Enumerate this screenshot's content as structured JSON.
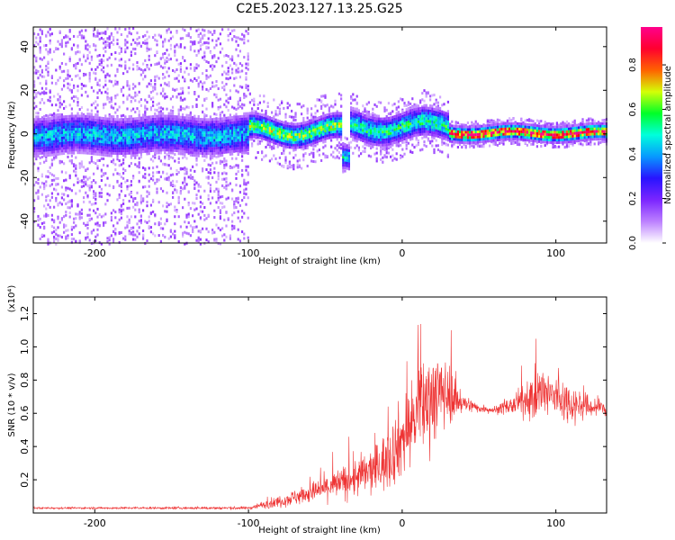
{
  "title": "C2E5.2023.127.13.25.G25",
  "colors": {
    "snr_line": "#ee3333",
    "background": "#ffffff",
    "axis": "#000000"
  },
  "chart_data": [
    {
      "type": "heatmap",
      "xlabel": "Height of straight line (km)",
      "ylabel": "Frequency (Hz)",
      "xlim": [
        -240,
        133
      ],
      "ylim": [
        -50,
        49
      ],
      "x_ticks": [
        -200,
        -100,
        0,
        100
      ],
      "y_ticks": [
        -40,
        -20,
        0,
        20,
        40
      ],
      "colorbar": {
        "label": "Normalized spectral amplitude",
        "range": [
          0.0,
          0.97
        ],
        "ticks": [
          "0.0",
          "0.2",
          "0.4",
          "0.6",
          "0.8"
        ],
        "tick_values": [
          0.0,
          0.2,
          0.4,
          0.6,
          0.8
        ],
        "colormap": [
          "#ff0080",
          "#ff0000",
          "#ffff00",
          "#00ff00",
          "#00ffff",
          "#0000ff",
          "#b000ff",
          "#ffffff"
        ]
      },
      "segments": [
        {
          "x_range": [
            -240,
            -100
          ],
          "center_hz": 0,
          "core_halfwidth_hz": 8,
          "scatter_halfwidth_hz": 50,
          "peak_amplitude": 0.45
        },
        {
          "x_range": [
            -100,
            -40
          ],
          "center_hz": 2,
          "core_halfwidth_hz": 5,
          "scatter_halfwidth_hz": 15,
          "peak_amplitude": 0.65
        },
        {
          "x_range": [
            -40,
            -35
          ],
          "center_hz": -12,
          "core_halfwidth_hz": 5,
          "scatter_halfwidth_hz": 10,
          "peak_amplitude": 0.5
        },
        {
          "x_range": [
            -35,
            30
          ],
          "center_hz": 4,
          "core_halfwidth_hz": 6,
          "scatter_halfwidth_hz": 14,
          "peak_amplitude": 0.55
        },
        {
          "x_range": [
            30,
            133
          ],
          "center_hz": 1,
          "core_halfwidth_hz": 3,
          "scatter_halfwidth_hz": 6,
          "peak_amplitude": 0.95
        }
      ]
    },
    {
      "type": "line",
      "xlabel": "Height of straight line (km)",
      "ylabel": "SNR (10 * v/v)",
      "y_scale_label": "(x10⁴)",
      "xlim": [
        -240,
        133
      ],
      "ylim": [
        0,
        1.3
      ],
      "x_ticks": [
        -200,
        -100,
        0,
        100
      ],
      "y_ticks": [
        "0.2",
        "0.4",
        "0.6",
        "0.8",
        "1.0",
        "1.2"
      ],
      "y_tick_values": [
        0.2,
        0.4,
        0.6,
        0.8,
        1.0,
        1.2
      ],
      "series": [
        {
          "x": [
            -240,
            -200,
            -150,
            -100,
            -80,
            -60,
            -40,
            -20,
            -10,
            0,
            10,
            20,
            30,
            40,
            50,
            60,
            70,
            80,
            90,
            100,
            110,
            120,
            133
          ],
          "y_mean": [
            0.03,
            0.03,
            0.03,
            0.03,
            0.07,
            0.12,
            0.18,
            0.25,
            0.32,
            0.45,
            0.6,
            0.72,
            0.72,
            0.66,
            0.63,
            0.62,
            0.64,
            0.68,
            0.72,
            0.7,
            0.66,
            0.64,
            0.63
          ],
          "y_noise": [
            0.005,
            0.005,
            0.006,
            0.008,
            0.03,
            0.05,
            0.08,
            0.12,
            0.15,
            0.2,
            0.22,
            0.25,
            0.15,
            0.05,
            0.02,
            0.02,
            0.04,
            0.08,
            0.15,
            0.12,
            0.1,
            0.06,
            0.05
          ]
        }
      ]
    }
  ]
}
